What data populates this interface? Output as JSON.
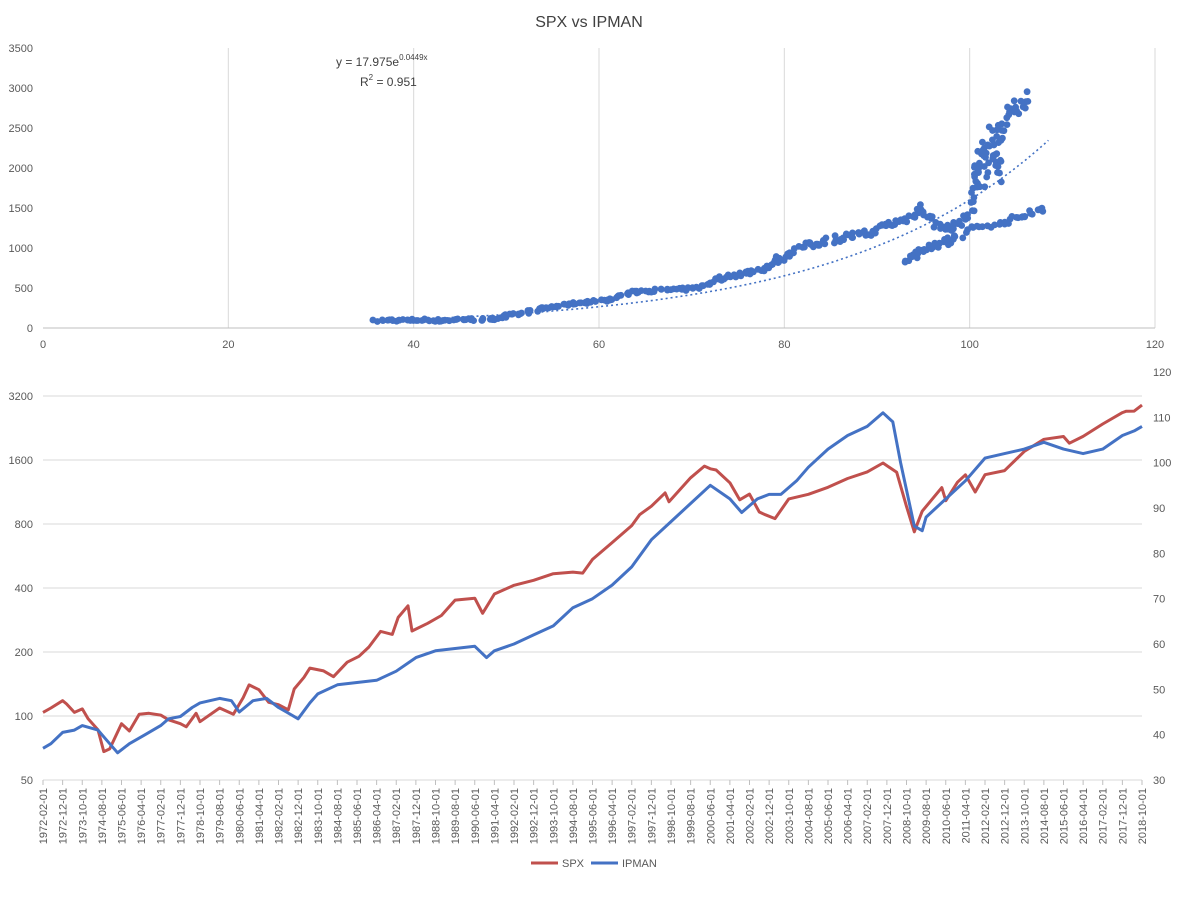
{
  "title": "SPX vs IPMAN",
  "chart_data": [
    {
      "type": "scatter",
      "xlim": [
        0,
        120
      ],
      "ylim": [
        0,
        3500
      ],
      "x_ticks": [
        "0",
        "20",
        "40",
        "60",
        "80",
        "100",
        "120"
      ],
      "y_ticks": [
        "0",
        "500",
        "1000",
        "1500",
        "2000",
        "2500",
        "3000",
        "3500"
      ],
      "grid": "vertical",
      "point_color": "#4472C4",
      "trendline": {
        "type": "exponential",
        "a": 17.975,
        "b": 0.0449,
        "x_range": [
          36,
          108.5
        ],
        "style": "dotted",
        "color": "#4472C4",
        "equation_base": "y = 17.975e",
        "equation_exp": "0.0449x",
        "r2_label": "R",
        "r2_sup": "2",
        "r2_value": " = 0.951"
      },
      "anchors": [
        [
          36.0,
          88
        ],
        [
          37.5,
          100
        ],
        [
          39.0,
          96
        ],
        [
          41.0,
          102
        ],
        [
          43.0,
          92
        ],
        [
          45.0,
          110
        ],
        [
          47.0,
          105
        ],
        [
          48.5,
          110
        ],
        [
          49.0,
          125
        ],
        [
          50.5,
          160
        ],
        [
          52.0,
          180
        ],
        [
          53.5,
          240
        ],
        [
          55.0,
          265
        ],
        [
          57.0,
          305
        ],
        [
          58.5,
          320
        ],
        [
          60.0,
          340
        ],
        [
          61.5,
          360
        ],
        [
          63.0,
          430
        ],
        [
          64.5,
          460
        ],
        [
          66.0,
          470
        ],
        [
          68.0,
          480
        ],
        [
          69.5,
          485
        ],
        [
          71.0,
          520
        ],
        [
          72.5,
          600
        ],
        [
          74.0,
          650
        ],
        [
          76.0,
          690
        ],
        [
          77.5,
          740
        ],
        [
          80.0,
          900
        ],
        [
          82.0,
          1020
        ],
        [
          84.0,
          1070
        ],
        [
          86.0,
          1130
        ],
        [
          88.0,
          1160
        ],
        [
          89.5,
          1200
        ],
        [
          91.0,
          1290
        ],
        [
          92.5,
          1330
        ],
        [
          94.0,
          1410
        ],
        [
          95.0,
          1500
        ],
        [
          95.5,
          1420
        ],
        [
          96.0,
          1300
        ],
        [
          97.0,
          1280
        ],
        [
          97.5,
          1230
        ],
        [
          98.0,
          1260
        ],
        [
          99.0,
          1330
        ],
        [
          100.0,
          1450
        ],
        [
          100.5,
          1640
        ],
        [
          101.0,
          2000
        ],
        [
          101.5,
          2200
        ],
        [
          102.5,
          2450
        ],
        [
          103.0,
          2350
        ],
        [
          103.5,
          2550
        ],
        [
          104.5,
          2700
        ],
        [
          105.5,
          2800
        ],
        [
          106.5,
          2920
        ]
      ],
      "branch_lower": [
        [
          98.5,
          1100
        ],
        [
          96.5,
          1050
        ],
        [
          95.0,
          1000
        ],
        [
          94.0,
          920
        ],
        [
          93.0,
          830
        ],
        [
          94.5,
          900
        ],
        [
          96.0,
          1000
        ],
        [
          97.5,
          1120
        ],
        [
          99.0,
          1160
        ],
        [
          100.5,
          1250
        ],
        [
          102.0,
          1290
        ],
        [
          103.5,
          1300
        ],
        [
          104.5,
          1350
        ],
        [
          105.5,
          1400
        ],
        [
          106.5,
          1420
        ],
        [
          107.5,
          1480
        ],
        [
          108.0,
          1520
        ]
      ]
    },
    {
      "type": "line",
      "x_start": "1972-02-01",
      "x_end": "2018-10-01",
      "x_tick_labels": [
        "1972-02-01",
        "1972-12-01",
        "1973-10-01",
        "1974-08-01",
        "1975-06-01",
        "1976-04-01",
        "1977-02-01",
        "1977-12-01",
        "1978-10-01",
        "1979-08-01",
        "1980-06-01",
        "1981-04-01",
        "1982-02-01",
        "1982-12-01",
        "1983-10-01",
        "1984-08-01",
        "1985-06-01",
        "1986-04-01",
        "1987-02-01",
        "1987-12-01",
        "1988-10-01",
        "1989-08-01",
        "1990-06-01",
        "1991-04-01",
        "1992-02-01",
        "1992-12-01",
        "1993-10-01",
        "1994-08-01",
        "1995-06-01",
        "1996-04-01",
        "1997-02-01",
        "1997-12-01",
        "1998-10-01",
        "1999-08-01",
        "2000-06-01",
        "2001-04-01",
        "2002-02-01",
        "2002-12-01",
        "2003-10-01",
        "2004-08-01",
        "2005-06-01",
        "2006-04-01",
        "2007-02-01",
        "2007-12-01",
        "2008-10-01",
        "2009-08-01",
        "2010-06-01",
        "2011-04-01",
        "2012-02-01",
        "2012-12-01",
        "2013-10-01",
        "2014-08-01",
        "2015-06-01",
        "2016-04-01",
        "2017-02-01",
        "2017-12-01",
        "2018-10-01"
      ],
      "y_left": {
        "scale": "log2",
        "min": 50,
        "max": 3200,
        "ticks": [
          "50",
          "100",
          "200",
          "400",
          "800",
          "1600",
          "3200"
        ]
      },
      "y_right": {
        "scale": "linear",
        "min": 30,
        "max": 120,
        "ticks": [
          "30",
          "40",
          "50",
          "60",
          "70",
          "80",
          "90",
          "100",
          "110",
          "120"
        ]
      },
      "grid": "horizontal",
      "legend_position": "bottom",
      "series": [
        {
          "name": "SPX",
          "color": "#C0504D",
          "axis": "left",
          "points": [
            [
              "1972-02-01",
              104
            ],
            [
              "1972-06-01",
              109
            ],
            [
              "1972-12-01",
              118
            ],
            [
              "1973-02-01",
              114
            ],
            [
              "1973-06-01",
              104
            ],
            [
              "1973-10-01",
              108
            ],
            [
              "1974-01-01",
              97
            ],
            [
              "1974-06-01",
              86
            ],
            [
              "1974-09-01",
              68
            ],
            [
              "1974-12-01",
              70
            ],
            [
              "1975-06-01",
              92
            ],
            [
              "1975-10-01",
              85
            ],
            [
              "1976-03-01",
              102
            ],
            [
              "1976-08-01",
              103
            ],
            [
              "1977-02-01",
              101
            ],
            [
              "1977-06-01",
              96
            ],
            [
              "1977-12-01",
              92
            ],
            [
              "1978-03-01",
              89
            ],
            [
              "1978-08-01",
              103
            ],
            [
              "1978-10-01",
              94
            ],
            [
              "1979-08-01",
              109
            ],
            [
              "1980-03-01",
              102
            ],
            [
              "1980-08-01",
              122
            ],
            [
              "1980-11-01",
              140
            ],
            [
              "1981-04-01",
              133
            ],
            [
              "1981-09-01",
              116
            ],
            [
              "1982-02-01",
              113
            ],
            [
              "1982-07-01",
              107
            ],
            [
              "1982-10-01",
              134
            ],
            [
              "1983-03-01",
              152
            ],
            [
              "1983-06-01",
              168
            ],
            [
              "1984-01-01",
              163
            ],
            [
              "1984-06-01",
              153
            ],
            [
              "1985-01-01",
              179
            ],
            [
              "1985-07-01",
              191
            ],
            [
              "1985-12-01",
              211
            ],
            [
              "1986-06-01",
              250
            ],
            [
              "1986-12-01",
              242
            ],
            [
              "1987-03-01",
              291
            ],
            [
              "1987-08-01",
              330
            ],
            [
              "1987-10-01",
              251
            ],
            [
              "1988-06-01",
              273
            ],
            [
              "1989-01-01",
              297
            ],
            [
              "1989-08-01",
              351
            ],
            [
              "1990-06-01",
              358
            ],
            [
              "1990-10-01",
              304
            ],
            [
              "1991-04-01",
              375
            ],
            [
              "1992-02-01",
              412
            ],
            [
              "1992-12-01",
              435
            ],
            [
              "1993-10-01",
              467
            ],
            [
              "1994-08-01",
              475
            ],
            [
              "1995-01-01",
              470
            ],
            [
              "1995-06-01",
              545
            ],
            [
              "1996-04-01",
              654
            ],
            [
              "1997-02-01",
              786
            ],
            [
              "1997-06-01",
              885
            ],
            [
              "1997-12-01",
              970
            ],
            [
              "1998-07-01",
              1120
            ],
            [
              "1998-09-01",
              1017
            ],
            [
              "1999-08-01",
              1320
            ],
            [
              "2000-03-01",
              1498
            ],
            [
              "2000-06-01",
              1455
            ],
            [
              "2000-09-01",
              1436
            ],
            [
              "2001-04-01",
              1250
            ],
            [
              "2001-09-01",
              1040
            ],
            [
              "2002-02-01",
              1106
            ],
            [
              "2002-07-01",
              911
            ],
            [
              "2002-10-01",
              885
            ],
            [
              "2003-03-01",
              848
            ],
            [
              "2003-10-01",
              1050
            ],
            [
              "2004-08-01",
              1104
            ],
            [
              "2005-06-01",
              1191
            ],
            [
              "2006-04-01",
              1310
            ],
            [
              "2007-02-01",
              1406
            ],
            [
              "2007-10-01",
              1549
            ],
            [
              "2008-05-01",
              1400
            ],
            [
              "2008-10-01",
              968
            ],
            [
              "2009-02-01",
              735
            ],
            [
              "2009-06-01",
              919
            ],
            [
              "2010-04-01",
              1186
            ],
            [
              "2010-06-01",
              1030
            ],
            [
              "2010-12-01",
              1258
            ],
            [
              "2011-04-01",
              1363
            ],
            [
              "2011-09-01",
              1131
            ],
            [
              "2012-02-01",
              1365
            ],
            [
              "2012-12-01",
              1426
            ],
            [
              "2013-10-01",
              1756
            ],
            [
              "2014-08-01",
              2003
            ],
            [
              "2015-06-01",
              2063
            ],
            [
              "2015-09-01",
              1920
            ],
            [
              "2016-04-01",
              2065
            ],
            [
              "2017-02-01",
              2364
            ],
            [
              "2017-12-01",
              2674
            ],
            [
              "2018-02-01",
              2714
            ],
            [
              "2018-06-01",
              2718
            ],
            [
              "2018-10-01",
              2900
            ]
          ]
        },
        {
          "name": "IPMAN",
          "color": "#4472C4",
          "axis": "right",
          "points": [
            [
              "1972-02-01",
              37
            ],
            [
              "1972-06-01",
              38
            ],
            [
              "1972-12-01",
              40.5
            ],
            [
              "1973-06-01",
              41
            ],
            [
              "1973-10-01",
              42
            ],
            [
              "1974-06-01",
              41
            ],
            [
              "1974-10-01",
              39
            ],
            [
              "1975-04-01",
              36
            ],
            [
              "1975-10-01",
              38
            ],
            [
              "1976-06-01",
              40
            ],
            [
              "1977-02-01",
              42
            ],
            [
              "1977-06-01",
              43.5
            ],
            [
              "1977-12-01",
              44
            ],
            [
              "1978-06-01",
              46
            ],
            [
              "1978-10-01",
              47
            ],
            [
              "1979-08-01",
              48
            ],
            [
              "1980-02-01",
              47.5
            ],
            [
              "1980-06-01",
              45
            ],
            [
              "1981-01-01",
              47.5
            ],
            [
              "1981-08-01",
              48
            ],
            [
              "1982-02-01",
              46
            ],
            [
              "1982-06-01",
              45
            ],
            [
              "1982-12-01",
              43.5
            ],
            [
              "1983-06-01",
              47
            ],
            [
              "1983-10-01",
              49
            ],
            [
              "1984-08-01",
              51
            ],
            [
              "1985-06-01",
              51.5
            ],
            [
              "1986-04-01",
              52
            ],
            [
              "1987-02-01",
              54
            ],
            [
              "1987-12-01",
              57
            ],
            [
              "1988-10-01",
              58.5
            ],
            [
              "1989-08-01",
              59
            ],
            [
              "1990-06-01",
              59.5
            ],
            [
              "1990-12-01",
              57
            ],
            [
              "1991-04-01",
              58.5
            ],
            [
              "1992-02-01",
              60
            ],
            [
              "1992-12-01",
              62
            ],
            [
              "1993-10-01",
              64
            ],
            [
              "1994-08-01",
              68
            ],
            [
              "1995-06-01",
              70
            ],
            [
              "1996-04-01",
              73
            ],
            [
              "1997-02-01",
              77
            ],
            [
              "1997-12-01",
              83
            ],
            [
              "1998-10-01",
              87
            ],
            [
              "1999-08-01",
              91
            ],
            [
              "2000-06-01",
              95
            ],
            [
              "2001-04-01",
              92
            ],
            [
              "2001-10-01",
              89
            ],
            [
              "2002-06-01",
              92
            ],
            [
              "2002-12-01",
              93
            ],
            [
              "2003-06-01",
              93
            ],
            [
              "2004-02-01",
              96
            ],
            [
              "2004-08-01",
              99
            ],
            [
              "2005-06-01",
              103
            ],
            [
              "2006-04-01",
              106
            ],
            [
              "2007-02-01",
              108
            ],
            [
              "2007-10-01",
              111
            ],
            [
              "2008-03-01",
              109
            ],
            [
              "2008-07-01",
              100
            ],
            [
              "2008-10-01",
              94
            ],
            [
              "2009-02-01",
              86
            ],
            [
              "2009-06-01",
              85
            ],
            [
              "2009-08-01",
              88
            ],
            [
              "2010-06-01",
              92
            ],
            [
              "2011-04-01",
              96
            ],
            [
              "2012-02-01",
              101
            ],
            [
              "2012-12-01",
              102
            ],
            [
              "2013-10-01",
              103
            ],
            [
              "2014-08-01",
              104.5
            ],
            [
              "2015-06-01",
              103
            ],
            [
              "2016-04-01",
              102
            ],
            [
              "2017-02-01",
              103
            ],
            [
              "2017-12-01",
              106
            ],
            [
              "2018-06-01",
              107
            ],
            [
              "2018-10-01",
              108
            ]
          ]
        }
      ]
    }
  ]
}
